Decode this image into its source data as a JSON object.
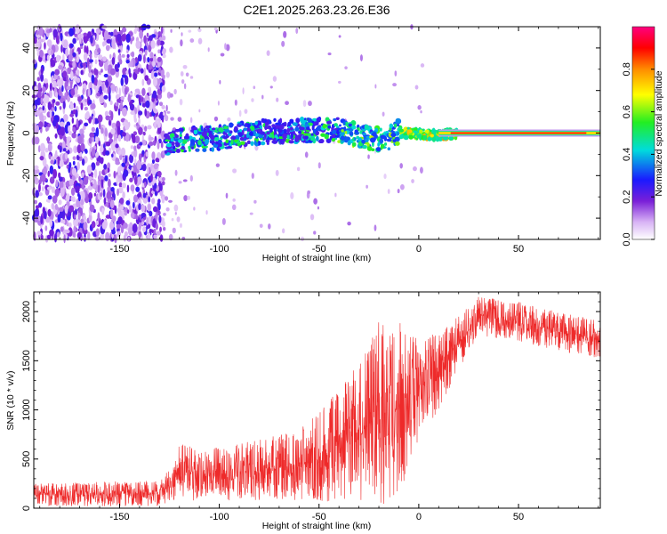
{
  "chart_data": [
    {
      "type": "heatmap",
      "title": "C2E1.2025.263.23.26.E36",
      "xlabel": "Height of straight line (km)",
      "ylabel": "Frequency (Hz)",
      "xlim": [
        -193,
        91
      ],
      "ylim": [
        -50,
        50
      ],
      "x_ticks": [
        -150,
        -100,
        -50,
        0,
        50
      ],
      "x_tick_labels": [
        "-150",
        "-100",
        "-50",
        "0",
        "50"
      ],
      "y_ticks": [
        -40,
        -20,
        0,
        20,
        40
      ],
      "y_tick_labels": [
        "-40",
        "-20",
        "0",
        "20",
        "40"
      ],
      "ridge": [
        {
          "x": -127,
          "freq": -5.0
        },
        {
          "x": -120,
          "freq": -3.5
        },
        {
          "x": -100,
          "freq": -2.0
        },
        {
          "x": -80,
          "freq": 0.5
        },
        {
          "x": -60,
          "freq": 1.0
        },
        {
          "x": -40,
          "freq": 1.5
        },
        {
          "x": -30,
          "freq": -1.0
        },
        {
          "x": -20,
          "freq": -3.0
        },
        {
          "x": -15,
          "freq": -2.0
        },
        {
          "x": -10,
          "freq": 0.5
        },
        {
          "x": 0,
          "freq": -0.5
        },
        {
          "x": 10,
          "freq": -1.0
        },
        {
          "x": 20,
          "freq": 0.0
        },
        {
          "x": 50,
          "freq": 0.0
        },
        {
          "x": 90,
          "freq": 0.0
        }
      ],
      "noise_region_x": [
        -193,
        -128
      ],
      "colorbar": {
        "label": "Normalized spectral amplitude",
        "range": [
          0,
          1
        ],
        "ticks": [
          0.0,
          0.2,
          0.4,
          0.6,
          0.8
        ],
        "tick_labels": [
          "0.0",
          "0.2",
          "0.4",
          "0.6",
          "0.8"
        ]
      }
    },
    {
      "type": "line",
      "xlabel": "Height of straight line (km)",
      "ylabel": "SNR (10 * v/v)",
      "xlim": [
        -193,
        91
      ],
      "ylim": [
        0,
        2200
      ],
      "x_ticks": [
        -150,
        -100,
        -50,
        0,
        50
      ],
      "x_tick_labels": [
        "-150",
        "-100",
        "-50",
        "0",
        "50"
      ],
      "y_ticks": [
        0,
        500,
        1000,
        1500,
        2000
      ],
      "y_tick_labels": [
        "0",
        "500",
        "1000",
        "1500",
        "2000"
      ],
      "series": [
        {
          "name": "SNR",
          "color": "#ee2a2a",
          "envelope": [
            {
              "x": -193,
              "low": 20,
              "high": 250
            },
            {
              "x": -160,
              "low": 20,
              "high": 270
            },
            {
              "x": -130,
              "low": 20,
              "high": 280
            },
            {
              "x": -125,
              "low": 60,
              "high": 400
            },
            {
              "x": -120,
              "low": 80,
              "high": 650
            },
            {
              "x": -100,
              "low": 80,
              "high": 620
            },
            {
              "x": -80,
              "low": 80,
              "high": 700
            },
            {
              "x": -60,
              "low": 80,
              "high": 800
            },
            {
              "x": -50,
              "low": 50,
              "high": 1000
            },
            {
              "x": -40,
              "low": 40,
              "high": 1200
            },
            {
              "x": -30,
              "low": 20,
              "high": 1500
            },
            {
              "x": -20,
              "low": 20,
              "high": 1900
            },
            {
              "x": -10,
              "low": 100,
              "high": 1900
            },
            {
              "x": 0,
              "low": 700,
              "high": 1700
            },
            {
              "x": 10,
              "low": 1000,
              "high": 1800
            },
            {
              "x": 20,
              "low": 1400,
              "high": 1950
            },
            {
              "x": 30,
              "low": 1750,
              "high": 2150
            },
            {
              "x": 50,
              "low": 1700,
              "high": 2100
            },
            {
              "x": 70,
              "low": 1600,
              "high": 2000
            },
            {
              "x": 91,
              "low": 1500,
              "high": 1900
            }
          ]
        }
      ]
    }
  ]
}
